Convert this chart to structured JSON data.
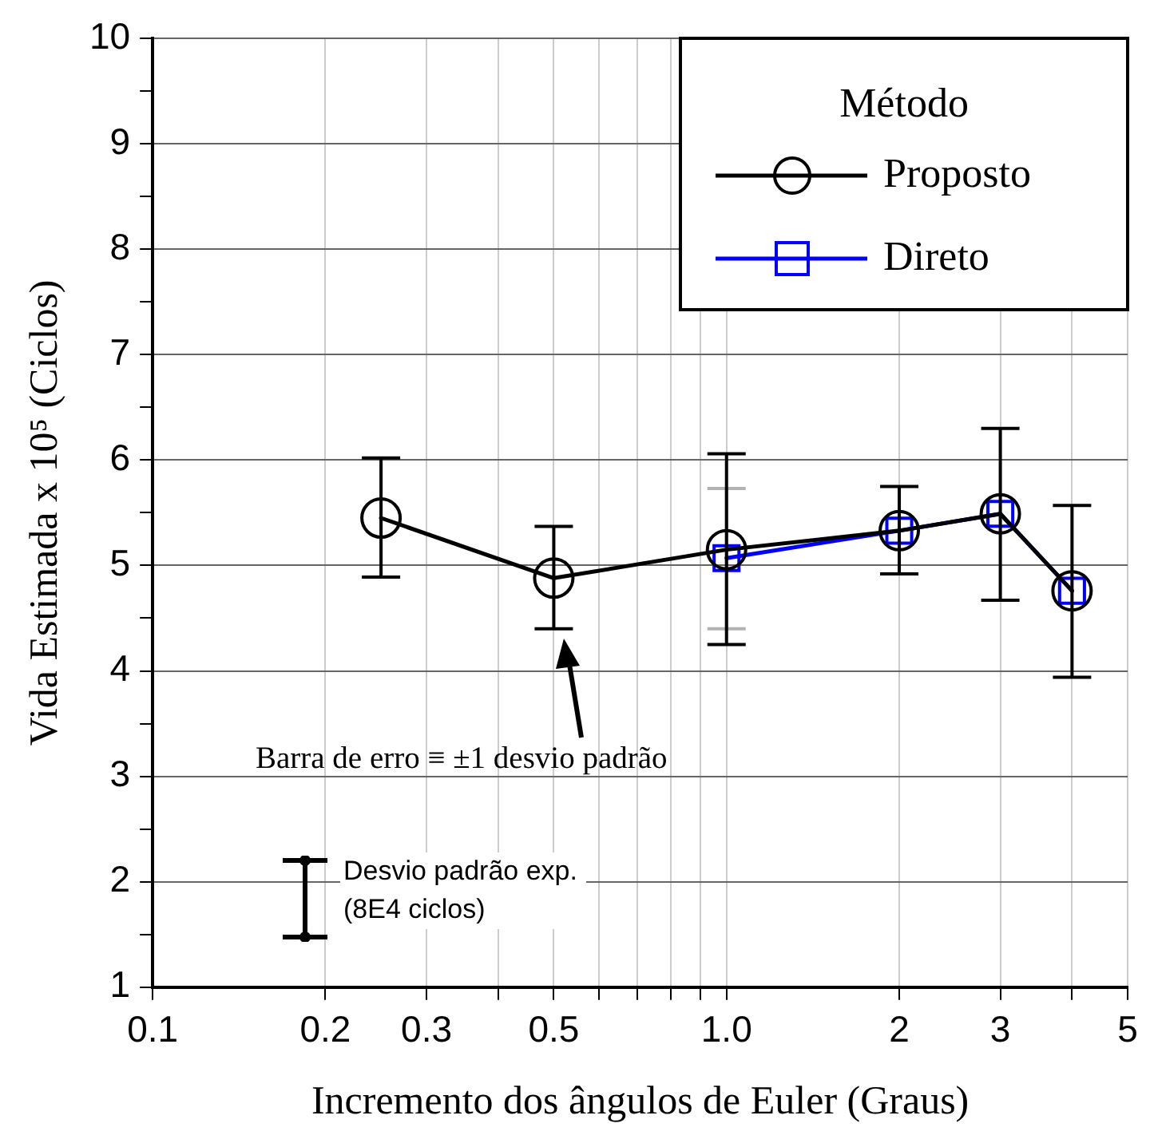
{
  "chart_data": {
    "type": "line",
    "xlabel": "Incremento dos ângulos de Euler (Graus)",
    "ylabel": "Vida Estimada x 10⁵ (Ciclos)",
    "legend_title": "Método",
    "log": "x",
    "xlim": [
      0.1,
      5
    ],
    "xticks": [
      0.1,
      0.2,
      0.3,
      {
        "value": 0.4,
        "label": null
      },
      0.5,
      {
        "value": 0.6,
        "label": null
      },
      {
        "value": 0.7,
        "label": null
      },
      {
        "value": 0.8,
        "label": null
      },
      {
        "value": 0.9,
        "label": null
      },
      {
        "value": 1,
        "label": "1.0"
      },
      2,
      3,
      {
        "value": 4,
        "label": null
      },
      5
    ],
    "ylim": [
      1,
      10
    ],
    "yticks": [
      1,
      {
        "value": 1.5,
        "label": null
      },
      2,
      {
        "value": 2.5,
        "label": null
      },
      3,
      {
        "value": 3.5,
        "label": null
      },
      4,
      {
        "value": 4.5,
        "label": null
      },
      5,
      {
        "value": 5.5,
        "label": null
      },
      6,
      {
        "value": 6.5,
        "label": null
      },
      7,
      {
        "value": 7.5,
        "label": null
      },
      8,
      {
        "value": 8.5,
        "label": null
      },
      9,
      {
        "value": 9.5,
        "label": null
      },
      10
    ],
    "grid": true,
    "legend": "top right",
    "line_style": "solid",
    "series": [
      {
        "name": "Proposto",
        "color": "#000000",
        "marker": "circle",
        "x": [
          0.25,
          0.5,
          1,
          2,
          3,
          4
        ],
        "values": [
          5.45,
          4.88,
          5.15,
          5.33,
          5.49,
          4.76
        ],
        "errors": [
          [
            4.89,
            6.02
          ],
          [
            4.4,
            5.37
          ],
          [
            4.25,
            6.06
          ],
          [
            4.92,
            5.75
          ],
          [
            4.67,
            6.3
          ],
          [
            3.94,
            5.57
          ]
        ]
      },
      {
        "name": "Direto",
        "color": "#0000ff",
        "marker": "square",
        "x": [
          1,
          2,
          3,
          4
        ],
        "values": [
          5.07,
          5.33,
          5.49,
          4.76
        ],
        "errors": [
          [
            4.4,
            5.73
          ],
          null,
          null,
          null
        ]
      }
    ],
    "annotations": [
      "Barra de erro ≡ ±1 desvio padrão",
      "Desvio padrão exp. (8E4 ciclos)"
    ]
  }
}
